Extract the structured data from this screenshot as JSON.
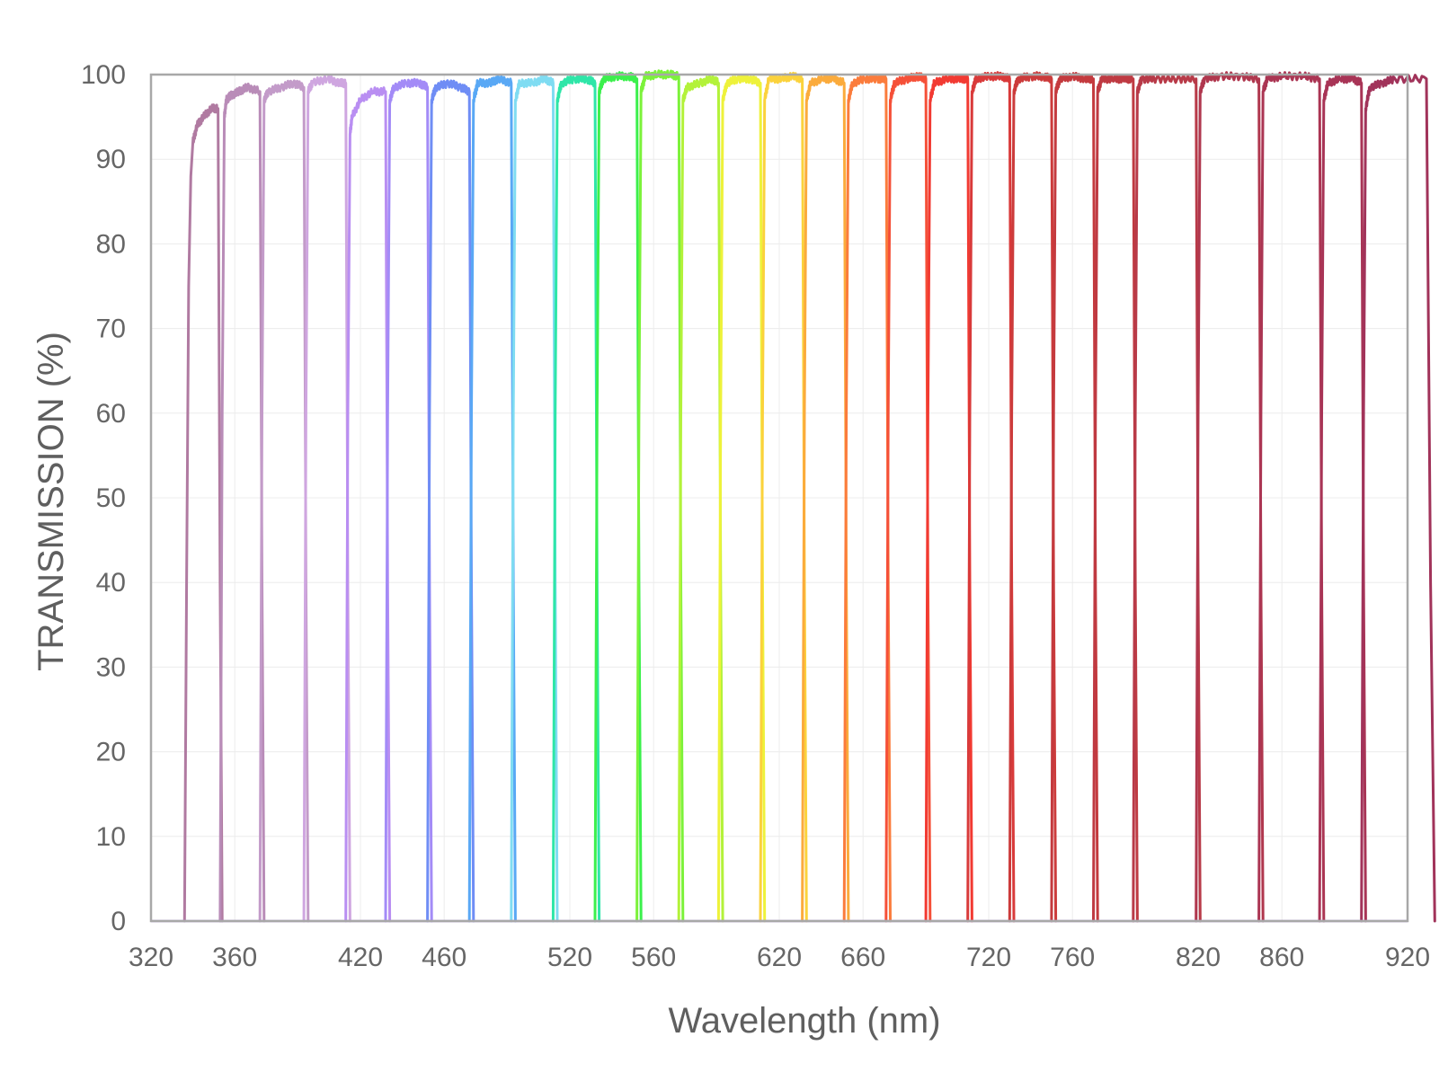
{
  "chart_data": {
    "type": "line",
    "title": "",
    "xlabel": "Wavelength (nm)",
    "ylabel": "TRANSMISSION (%)",
    "xlim": [
      320,
      920
    ],
    "ylim": [
      0,
      100
    ],
    "x_ticks": [
      320,
      360,
      420,
      460,
      520,
      560,
      620,
      660,
      720,
      760,
      820,
      860,
      920
    ],
    "x_tick_labels": [
      "320",
      "360",
      "420",
      "460",
      "520",
      "560",
      "620",
      "660",
      "720",
      "760",
      "820",
      "860",
      "920"
    ],
    "y_ticks": [
      0,
      10,
      20,
      30,
      40,
      50,
      60,
      70,
      80,
      90,
      100
    ],
    "y_tick_labels": [
      "0",
      "10",
      "20",
      "30",
      "40",
      "50",
      "60",
      "70",
      "80",
      "90",
      "100"
    ],
    "grid": true,
    "legend": "none",
    "series": [
      {
        "color": "#b07aa1",
        "x": [
          336,
          337,
          338,
          339,
          340,
          342,
          345,
          349,
          352,
          353,
          354
        ],
        "y": [
          0,
          40,
          75,
          88,
          92,
          94,
          95,
          96,
          96,
          40,
          0
        ]
      },
      {
        "color": "#b98cb8",
        "x": [
          353,
          354,
          355,
          356,
          358,
          362,
          366,
          372,
          373,
          374
        ],
        "y": [
          0,
          60,
          95,
          97,
          97.5,
          98,
          98.5,
          98,
          40,
          0
        ]
      },
      {
        "color": "#c39bc9",
        "x": [
          372,
          373,
          374,
          376,
          382,
          388,
          393,
          394,
          395
        ],
        "y": [
          0,
          60,
          97,
          98,
          98.5,
          99,
          98.5,
          40,
          0
        ]
      },
      {
        "color": "#cfa6e0",
        "x": [
          393,
          394,
          395,
          397,
          404,
          410,
          413,
          414,
          415
        ],
        "y": [
          0,
          60,
          98,
          99,
          99.5,
          99,
          99,
          40,
          0
        ]
      },
      {
        "color": "#b98ef2",
        "x": [
          413,
          414,
          415,
          416,
          420,
          426,
          432,
          433,
          434
        ],
        "y": [
          0,
          60,
          93,
          95,
          97,
          98,
          98,
          40,
          0
        ]
      },
      {
        "color": "#a38bf7",
        "x": [
          432,
          433,
          434,
          436,
          442,
          448,
          452,
          453,
          454
        ],
        "y": [
          0,
          60,
          97,
          98.5,
          99,
          99,
          98.5,
          40,
          0
        ]
      },
      {
        "color": "#6f8df5",
        "x": [
          452,
          453,
          454,
          456,
          462,
          468,
          472,
          473,
          474
        ],
        "y": [
          0,
          60,
          97,
          98.5,
          99,
          98.5,
          98,
          40,
          0
        ]
      },
      {
        "color": "#59a8f5",
        "x": [
          472,
          473,
          474,
          476,
          482,
          486,
          492,
          493,
          494
        ],
        "y": [
          0,
          60,
          97,
          99,
          99,
          99.5,
          99,
          40,
          0
        ]
      },
      {
        "color": "#7fdcf2",
        "x": [
          492,
          493,
          494,
          496,
          502,
          508,
          512,
          513,
          514
        ],
        "y": [
          0,
          60,
          97,
          99,
          99,
          99.5,
          99,
          40,
          0
        ]
      },
      {
        "color": "#2ee6a8",
        "x": [
          512,
          513,
          514,
          516,
          522,
          528,
          532,
          533,
          534
        ],
        "y": [
          0,
          60,
          97,
          99,
          99.5,
          99.5,
          99,
          40,
          0
        ]
      },
      {
        "color": "#3bf04c",
        "x": [
          532,
          533,
          534,
          536,
          542,
          548,
          552,
          553,
          554
        ],
        "y": [
          0,
          60,
          98,
          99.5,
          99.8,
          99.8,
          99.5,
          40,
          0
        ]
      },
      {
        "color": "#7cf23a",
        "x": [
          552,
          553,
          554,
          556,
          562,
          568,
          572,
          573,
          574
        ],
        "y": [
          0,
          60,
          98,
          99.8,
          100,
          100,
          99.8,
          40,
          0
        ]
      },
      {
        "color": "#b3f23a",
        "x": [
          572,
          573,
          574,
          576,
          582,
          588,
          591,
          592,
          593
        ],
        "y": [
          0,
          60,
          97,
          98.5,
          99,
          99.5,
          99,
          40,
          0
        ]
      },
      {
        "color": "#eef23a",
        "x": [
          591,
          592,
          593,
          595,
          600,
          606,
          611,
          612,
          613
        ],
        "y": [
          0,
          60,
          97,
          99,
          99.5,
          99.5,
          99,
          40,
          0
        ]
      },
      {
        "color": "#fbd23c",
        "x": [
          611,
          612,
          613,
          615,
          621,
          626,
          631,
          632,
          633
        ],
        "y": [
          0,
          60,
          97,
          99.5,
          99.5,
          99.8,
          99.5,
          40,
          0
        ]
      },
      {
        "color": "#fbab3c",
        "x": [
          631,
          632,
          633,
          635,
          641,
          646,
          651,
          652,
          653
        ],
        "y": [
          0,
          60,
          97,
          99,
          99.5,
          99.5,
          99,
          40,
          0
        ]
      },
      {
        "color": "#fb7c3c",
        "x": [
          651,
          652,
          653,
          655,
          661,
          667,
          671,
          672,
          673
        ],
        "y": [
          0,
          60,
          97,
          99,
          99.5,
          99.5,
          99.5,
          40,
          0
        ]
      },
      {
        "color": "#f55038",
        "x": [
          671,
          672,
          673,
          675,
          681,
          686,
          690,
          691,
          692
        ],
        "y": [
          0,
          60,
          97,
          99,
          99.5,
          99.8,
          99.5,
          40,
          0
        ]
      },
      {
        "color": "#f23a32",
        "x": [
          690,
          691,
          692,
          694,
          700,
          706,
          710,
          711,
          712
        ],
        "y": [
          0,
          60,
          97,
          99,
          99.5,
          99.5,
          99.5,
          40,
          0
        ]
      },
      {
        "color": "#d93a3a",
        "x": [
          710,
          711,
          712,
          714,
          720,
          726,
          730,
          731,
          732
        ],
        "y": [
          0,
          60,
          98,
          99.5,
          99.8,
          99.8,
          99.5,
          40,
          0
        ]
      },
      {
        "color": "#cc3b3b",
        "x": [
          730,
          731,
          732,
          734,
          740,
          746,
          750,
          751,
          752
        ],
        "y": [
          0,
          60,
          98,
          99.5,
          99.8,
          99.8,
          99.5,
          40,
          0
        ]
      },
      {
        "color": "#c43a3e",
        "x": [
          750,
          751,
          752,
          754,
          760,
          766,
          770,
          771,
          772
        ],
        "y": [
          0,
          60,
          98,
          99.5,
          99.8,
          99.5,
          99.5,
          40,
          0
        ]
      },
      {
        "color": "#bf3a42",
        "x": [
          770,
          771,
          772,
          774,
          780,
          785,
          789,
          790,
          791
        ],
        "y": [
          0,
          60,
          98,
          99.5,
          99.5,
          99.5,
          99.5,
          40,
          0
        ]
      },
      {
        "color": "#b83a48",
        "x": [
          789,
          790,
          791,
          793,
          800,
          810,
          819,
          820,
          821
        ],
        "y": [
          0,
          60,
          98,
          99.5,
          99.5,
          99.5,
          99.5,
          40,
          0
        ]
      },
      {
        "color": "#b0374e",
        "x": [
          819,
          820,
          821,
          823,
          830,
          840,
          849,
          850,
          851
        ],
        "y": [
          0,
          60,
          98,
          99.5,
          99.8,
          99.8,
          99.5,
          40,
          0
        ]
      },
      {
        "color": "#ab3553",
        "x": [
          849,
          850,
          851,
          853,
          860,
          870,
          878,
          879,
          880
        ],
        "y": [
          0,
          60,
          98,
          99.5,
          99.8,
          99.8,
          99.5,
          40,
          0
        ]
      },
      {
        "color": "#a83456",
        "x": [
          878,
          879,
          880,
          882,
          888,
          894,
          898,
          899,
          900
        ],
        "y": [
          0,
          60,
          97,
          99,
          99.5,
          99.5,
          99,
          40,
          0
        ]
      },
      {
        "color": "#a1335a",
        "x": [
          898,
          899,
          900,
          902,
          908,
          914,
          929,
          931,
          933
        ],
        "y": [
          0,
          60,
          96,
          98.5,
          99,
          99.5,
          99.5,
          40,
          0
        ]
      }
    ]
  }
}
